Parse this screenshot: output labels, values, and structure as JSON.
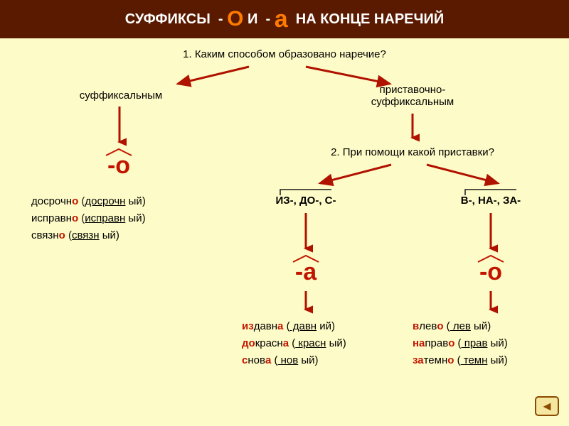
{
  "colors": {
    "page_bg": "#fdfbc7",
    "header_bg": "#5a1a00",
    "header_text": "#ffffff",
    "accent_red": "#c21500",
    "accent_orange": "#ff7a00",
    "text_dark": "#1a1a1a",
    "arrow": "#b01200",
    "nav_border": "#8a4a00",
    "nav_bg": "#f5e6a0",
    "nav_arrow": "#8a4a00"
  },
  "header": {
    "p1": "СУФФИКСЫ  - ",
    "big_o": "О",
    "p2": " И  - ",
    "big_a": "а",
    "p3": "  НА КОНЦЕ НАРЕЧИЙ"
  },
  "q1": "1. Каким способом образовано наречие?",
  "method_left": "суффиксальным",
  "method_right": "приставочно-\nсуффиксальным",
  "suffix_o": "-о",
  "suffix_a": "-а",
  "suffix_o2": "-о",
  "q2": "2. При помощи какой приставки?",
  "prefix_left": "ИЗ-, ДО-, С-",
  "prefix_right": "В-, НА-, ЗА-",
  "examples_left": [
    {
      "pre": "",
      "root": "досрочн",
      "end": "о",
      "src_pre": "досрочн",
      "src_end": "ый"
    },
    {
      "pre": "",
      "root": "исправн",
      "end": "о",
      "src_pre": "исправн",
      "src_end": "ый"
    },
    {
      "pre": "",
      "root": "связн",
      "end": "о",
      "src_pre": "связн",
      "src_end": "ый"
    }
  ],
  "examples_mid": [
    {
      "pre": "из",
      "root": "давна ",
      "src": "( давн",
      "src_end": " ий)"
    },
    {
      "pre": "до",
      "root": "красна ",
      "src": "( красн",
      "src_end": " ый)"
    },
    {
      "pre": "с",
      "root": "нова ",
      "src": "( нов",
      "src_end": " ый)"
    }
  ],
  "examples_right": [
    {
      "pre": "в",
      "root": "лево ",
      "src": "( лев",
      "src_end": " ый)"
    },
    {
      "pre": "на",
      "root": "право ",
      "src": "( прав",
      "src_end": " ый)"
    },
    {
      "pre": "за",
      "root": "темно ",
      "src": "( темн",
      "src_end": " ый)"
    }
  ],
  "fontsize": {
    "header": 20,
    "label": 15,
    "big_suffix": 34,
    "examples": 15
  }
}
